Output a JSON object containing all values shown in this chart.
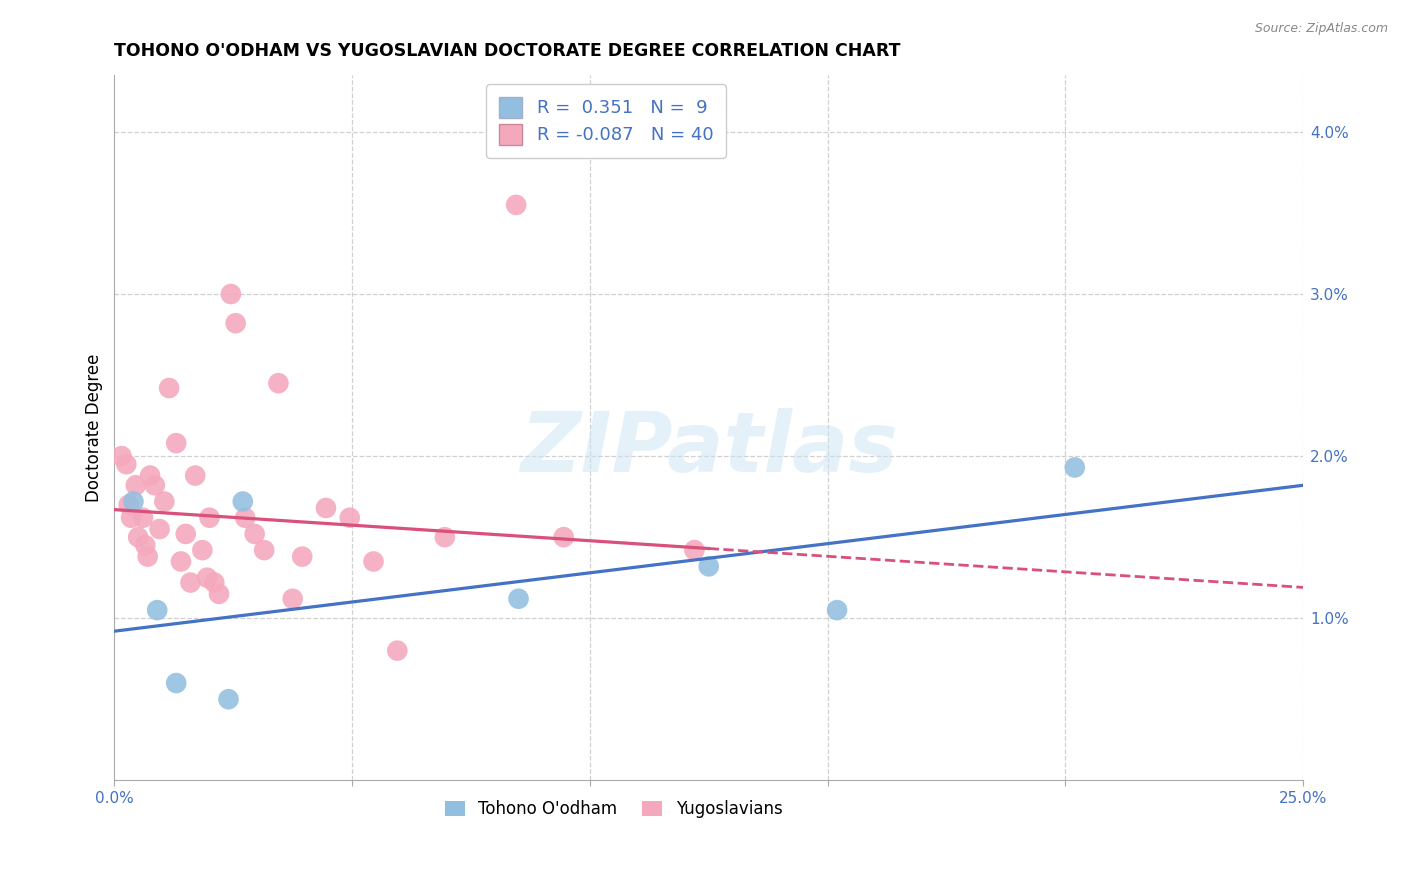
{
  "title": "TOHONO O'ODHAM VS YUGOSLAVIAN DOCTORATE DEGREE CORRELATION CHART",
  "source": "Source: ZipAtlas.com",
  "ylabel": "Doctorate Degree",
  "ylabel_right_ticks": [
    "1.0%",
    "2.0%",
    "3.0%",
    "4.0%"
  ],
  "ylabel_right_vals": [
    1.0,
    2.0,
    3.0,
    4.0
  ],
  "xlim": [
    0.0,
    25.0
  ],
  "ylim": [
    0.0,
    4.35
  ],
  "legend_blue_r": "0.351",
  "legend_blue_n": "9",
  "legend_pink_r": "-0.087",
  "legend_pink_n": "40",
  "color_blue": "#92bfe0",
  "color_pink": "#f4a8bc",
  "color_blue_line": "#4472c4",
  "color_pink_line": "#d9507a",
  "text_blue": "#4472c4",
  "background": "#ffffff",
  "grid_color": "#d0d0d0",
  "watermark": "ZIPatlas",
  "blue_x": [
    0.4,
    0.9,
    1.3,
    2.4,
    2.7,
    8.5,
    12.5,
    15.2,
    20.2
  ],
  "blue_y": [
    1.72,
    1.05,
    0.6,
    0.5,
    1.72,
    1.12,
    1.32,
    1.05,
    1.93
  ],
  "pink_x": [
    0.15,
    0.25,
    0.3,
    0.35,
    0.45,
    0.5,
    0.6,
    0.65,
    0.7,
    0.75,
    0.85,
    0.95,
    1.05,
    1.15,
    1.3,
    1.4,
    1.5,
    1.6,
    1.7,
    1.85,
    1.95,
    2.0,
    2.1,
    2.2,
    2.45,
    2.55,
    2.75,
    2.95,
    3.15,
    3.45,
    3.75,
    3.95,
    4.45,
    4.95,
    5.45,
    5.95,
    6.95,
    8.45,
    9.45,
    12.2
  ],
  "pink_y": [
    2.0,
    1.95,
    1.7,
    1.62,
    1.82,
    1.5,
    1.62,
    1.45,
    1.38,
    1.88,
    1.82,
    1.55,
    1.72,
    2.42,
    2.08,
    1.35,
    1.52,
    1.22,
    1.88,
    1.42,
    1.25,
    1.62,
    1.22,
    1.15,
    3.0,
    2.82,
    1.62,
    1.52,
    1.42,
    2.45,
    1.12,
    1.38,
    1.68,
    1.62,
    1.35,
    0.8,
    1.5,
    3.55,
    1.5,
    1.42
  ],
  "blue_line_x0": 0.0,
  "blue_line_x1": 25.0,
  "blue_line_y0": 0.92,
  "blue_line_y1": 1.82,
  "pink_line_x0": 0.0,
  "pink_line_x1": 25.0,
  "pink_line_y0": 1.67,
  "pink_line_y1": 1.19,
  "pink_solid_end_x": 12.5,
  "pink_solid_end_y": 1.43,
  "x_tick_positions": [
    0,
    5,
    10,
    15,
    20,
    25
  ],
  "x_tick_labels_show": [
    "0.0%",
    "",
    "",
    "",
    "",
    "25.0%"
  ]
}
